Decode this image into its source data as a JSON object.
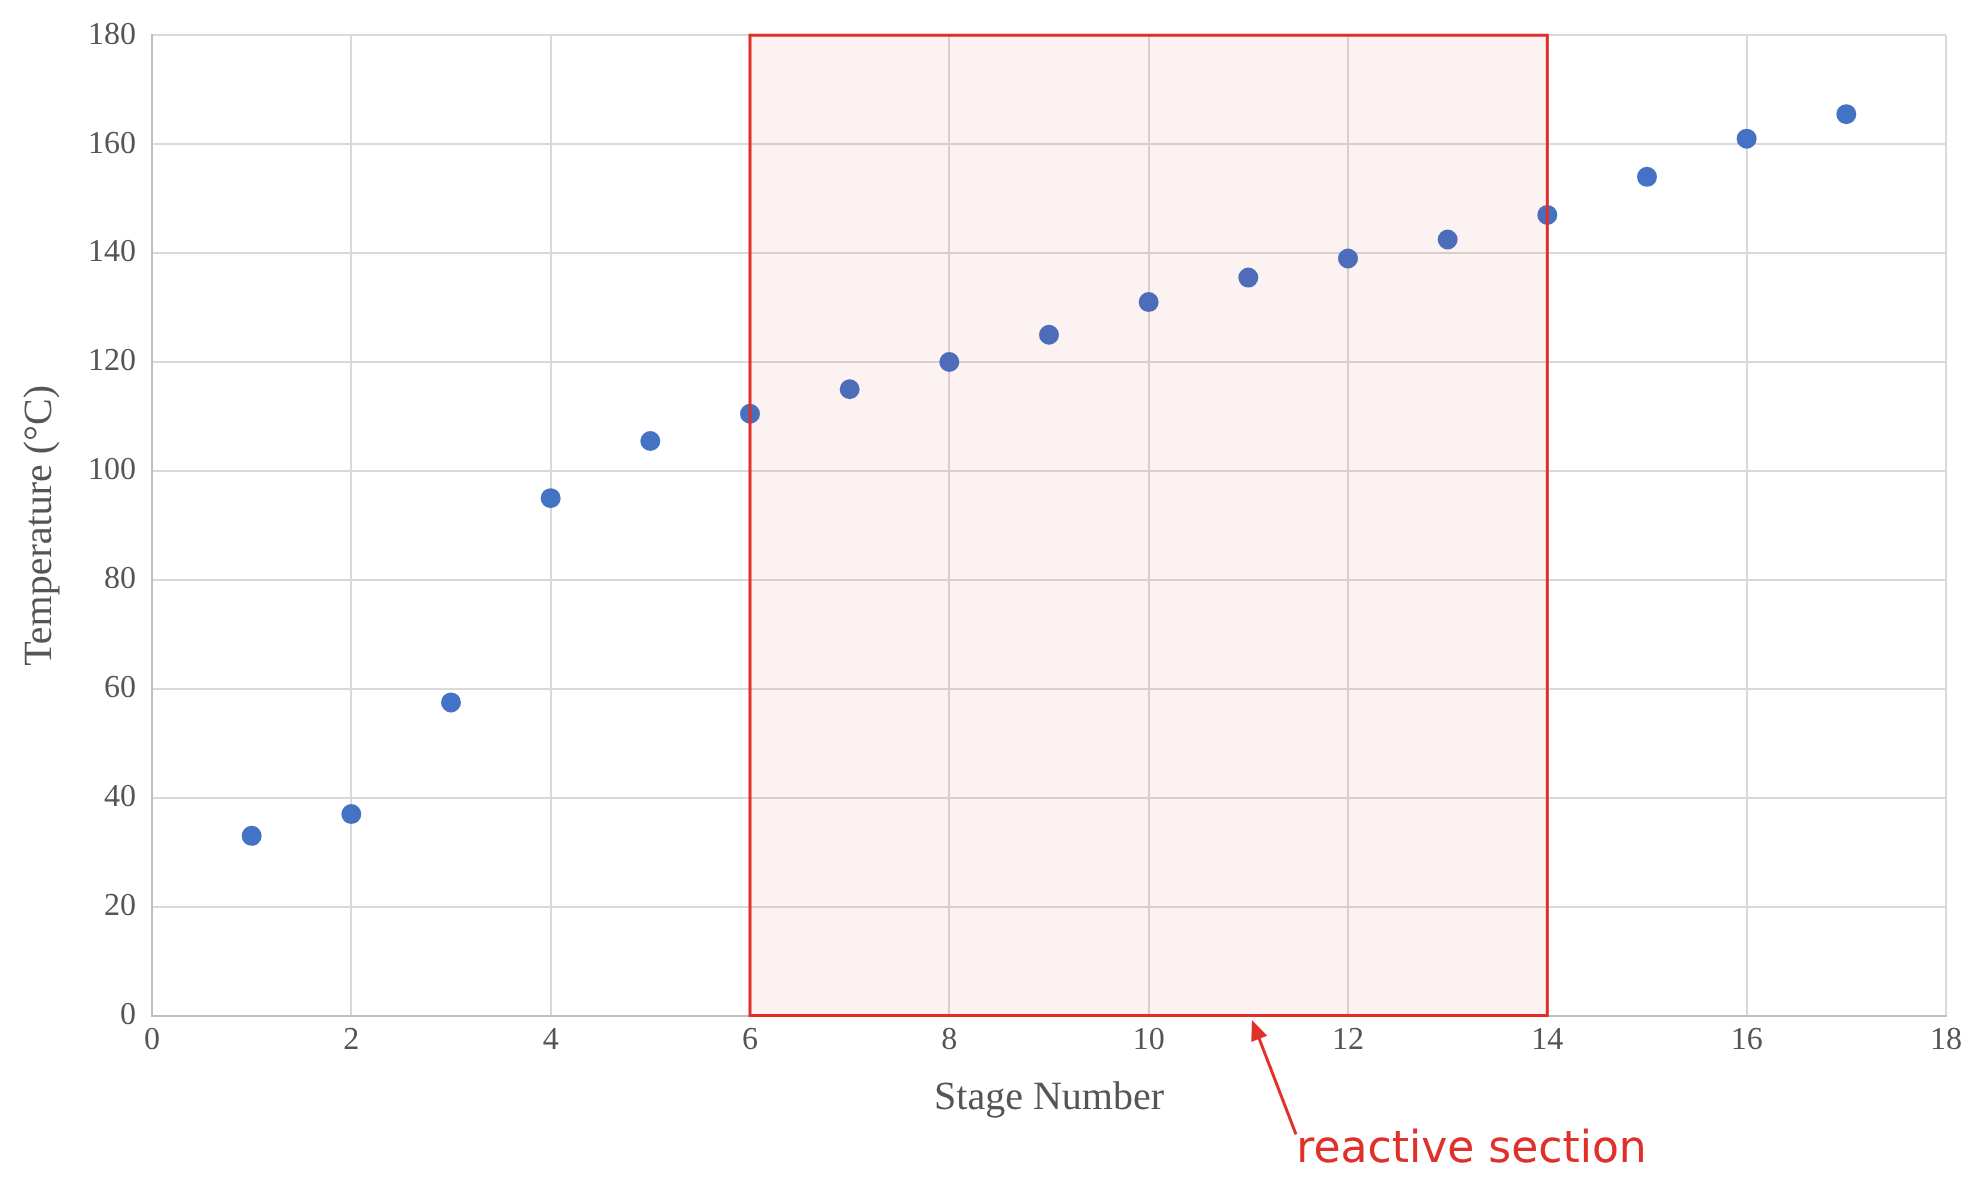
{
  "chart_data": {
    "type": "scatter",
    "xlabel": "Stage Number",
    "ylabel": "Temperature (°C)",
    "x": [
      1,
      2,
      3,
      4,
      5,
      6,
      7,
      8,
      9,
      10,
      11,
      12,
      13,
      14,
      15,
      16,
      17
    ],
    "series": [
      {
        "color": "#4472c4",
        "values": [
          33,
          37,
          57.5,
          95,
          105.5,
          110.5,
          115,
          120,
          125,
          131,
          135.5,
          139,
          142.5,
          147,
          154,
          161,
          165.5
        ]
      }
    ],
    "xlim": [
      0,
      18
    ],
    "xticks": [
      0,
      2,
      4,
      6,
      8,
      10,
      12,
      14,
      16,
      18
    ],
    "ylim": [
      0,
      180
    ],
    "yticks": [
      0,
      20,
      40,
      60,
      80,
      100,
      120,
      140,
      160,
      180
    ],
    "grid": true,
    "legend": false,
    "marker": "circle",
    "bands": [
      {
        "axis": "x",
        "from": 6,
        "to": 14,
        "label": "reactive section",
        "color": "#e0302a"
      }
    ]
  }
}
